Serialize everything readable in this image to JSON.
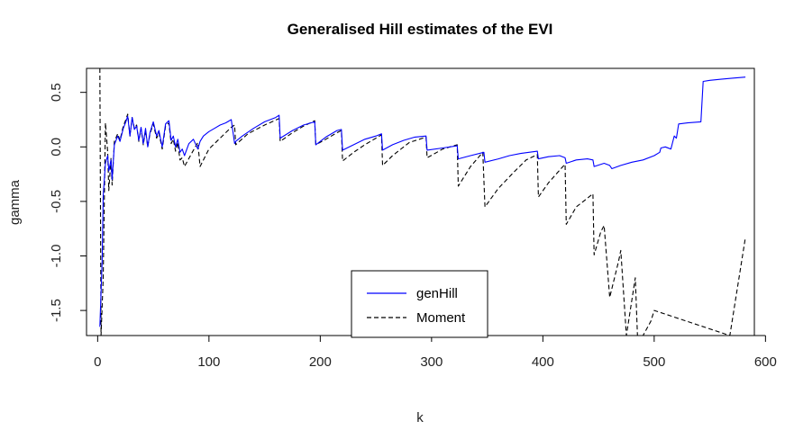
{
  "chart_data": {
    "type": "line",
    "title": "Generalised Hill estimates of the EVI",
    "xlabel": "k",
    "ylabel": "gamma",
    "xlim": [
      -10,
      590
    ],
    "ylim": [
      -1.73,
      0.72
    ],
    "x_ticks": [
      0,
      100,
      200,
      300,
      400,
      500,
      600
    ],
    "y_ticks": [
      -1.5,
      -1.0,
      -0.5,
      0.0,
      0.5
    ],
    "y_tick_labels": [
      "-1.5",
      "-1.0",
      "-0.5",
      "0.0",
      "0.5"
    ],
    "grid": false,
    "legend": {
      "position": "bottom-center"
    },
    "series": [
      {
        "name": "genHill",
        "color": "#0000ff",
        "dash": "solid",
        "x": [
          2,
          4,
          5,
          7,
          9,
          10,
          12,
          13,
          15,
          18,
          20,
          23,
          25,
          27,
          29,
          31,
          33,
          35,
          37,
          39,
          41,
          43,
          45,
          47,
          50,
          53,
          55,
          58,
          61,
          64,
          66,
          68,
          70,
          72,
          74,
          76,
          78,
          82,
          86,
          90,
          92,
          95,
          100,
          105,
          110,
          115,
          120,
          123,
          124,
          130,
          140,
          150,
          160,
          163,
          164,
          175,
          185,
          195,
          196,
          205,
          215,
          219,
          220,
          230,
          240,
          250,
          255,
          256,
          265,
          275,
          285,
          295,
          296,
          310,
          323,
          324,
          335,
          347,
          348,
          360,
          370,
          380,
          395,
          396,
          405,
          415,
          420,
          421,
          430,
          440,
          445,
          446,
          455,
          460,
          462,
          470,
          480,
          490,
          500,
          505,
          506,
          510,
          515,
          518,
          520,
          522,
          530,
          542,
          544,
          550,
          560,
          570,
          582
        ],
        "y": [
          -1.65,
          -1.05,
          -0.45,
          -0.15,
          -0.08,
          -0.22,
          -0.12,
          -0.3,
          0.02,
          0.1,
          0.05,
          0.17,
          0.22,
          0.28,
          0.1,
          0.27,
          0.16,
          0.19,
          0.06,
          0.18,
          0.03,
          0.17,
          0.0,
          0.13,
          0.23,
          0.1,
          0.15,
          0.0,
          0.21,
          0.24,
          0.06,
          0.1,
          0.0,
          0.07,
          -0.05,
          -0.02,
          -0.08,
          0.03,
          0.07,
          -0.02,
          0.05,
          0.1,
          0.14,
          0.17,
          0.2,
          0.22,
          0.25,
          0.03,
          0.05,
          0.1,
          0.17,
          0.23,
          0.27,
          0.29,
          0.08,
          0.15,
          0.2,
          0.23,
          0.02,
          0.09,
          0.15,
          0.16,
          -0.03,
          0.02,
          0.07,
          0.1,
          0.12,
          -0.03,
          0.02,
          0.06,
          0.09,
          0.1,
          -0.03,
          -0.01,
          0.01,
          -0.11,
          -0.08,
          -0.05,
          -0.14,
          -0.11,
          -0.08,
          -0.06,
          -0.04,
          -0.11,
          -0.09,
          -0.08,
          -0.1,
          -0.15,
          -0.12,
          -0.11,
          -0.12,
          -0.18,
          -0.15,
          -0.17,
          -0.2,
          -0.17,
          -0.14,
          -0.12,
          -0.08,
          -0.05,
          -0.01,
          0.0,
          -0.02,
          0.1,
          0.08,
          0.21,
          0.22,
          0.23,
          0.6,
          0.61,
          0.62,
          0.63,
          0.64
        ]
      },
      {
        "name": "Moment",
        "color": "#000000",
        "dash": "dashed",
        "x": [
          2,
          3,
          5,
          7,
          9,
          10,
          12,
          13,
          15,
          18,
          20,
          23,
          25,
          27,
          29,
          31,
          33,
          35,
          37,
          39,
          41,
          43,
          45,
          47,
          50,
          53,
          55,
          58,
          61,
          64,
          66,
          68,
          70,
          72,
          74,
          76,
          78,
          85,
          90,
          92,
          100,
          110,
          120,
          123,
          124,
          135,
          150,
          163,
          164,
          175,
          185,
          195,
          196,
          205,
          215,
          219,
          220,
          230,
          240,
          255,
          256,
          265,
          280,
          295,
          296,
          310,
          323,
          324,
          335,
          346,
          348,
          360,
          375,
          385,
          395,
          396,
          405,
          418,
          420,
          421,
          430,
          440,
          445,
          446,
          452,
          455,
          460,
          468,
          470,
          475,
          483,
          485,
          490,
          497,
          500,
          568,
          582
        ],
        "y": [
          0.72,
          -1.73,
          -1.2,
          0.22,
          -0.05,
          -0.4,
          -0.1,
          -0.35,
          0.05,
          0.12,
          0.06,
          0.19,
          0.24,
          0.3,
          0.1,
          0.27,
          0.17,
          0.2,
          0.05,
          0.17,
          0.02,
          0.15,
          0.0,
          0.12,
          0.21,
          0.08,
          0.13,
          -0.02,
          0.19,
          0.22,
          0.03,
          0.07,
          -0.04,
          0.04,
          -0.12,
          -0.1,
          -0.18,
          -0.05,
          0.04,
          -0.18,
          -0.02,
          0.08,
          0.18,
          0.2,
          0.02,
          0.12,
          0.2,
          0.26,
          0.05,
          0.13,
          0.19,
          0.24,
          0.02,
          0.07,
          0.13,
          0.15,
          -0.13,
          -0.05,
          0.02,
          0.11,
          -0.17,
          -0.08,
          0.04,
          0.09,
          -0.1,
          -0.02,
          0.02,
          -0.36,
          -0.18,
          -0.05,
          -0.55,
          -0.38,
          -0.22,
          -0.12,
          -0.07,
          -0.46,
          -0.33,
          -0.18,
          -0.16,
          -0.71,
          -0.55,
          -0.47,
          -0.43,
          -0.99,
          -0.78,
          -0.72,
          -1.38,
          -1.05,
          -0.95,
          -1.73,
          -1.2,
          -1.73,
          -1.73,
          -1.6,
          -1.5,
          -1.73,
          -0.83
        ]
      }
    ]
  }
}
